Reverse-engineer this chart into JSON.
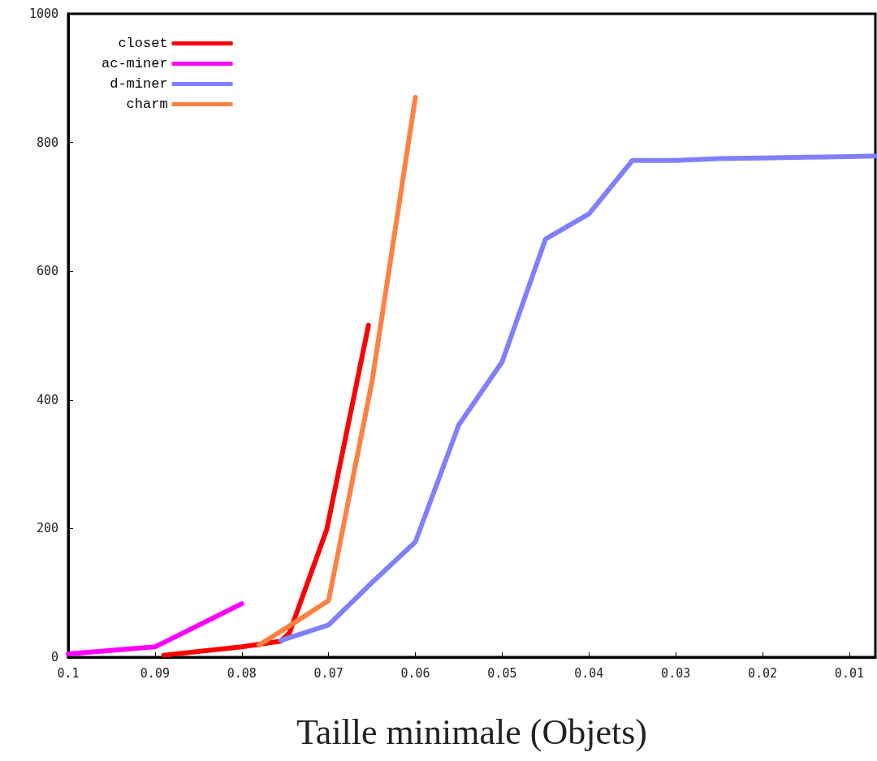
{
  "chart_data": {
    "type": "line",
    "xlabel": "Taille minimale (Objets)",
    "xlim": [
      0.1,
      0.007
    ],
    "xticks": [
      {
        "value": 0.1,
        "label": "0.1"
      },
      {
        "value": 0.09,
        "label": "0.09"
      },
      {
        "value": 0.08,
        "label": "0.08"
      },
      {
        "value": 0.07,
        "label": "0.07"
      },
      {
        "value": 0.06,
        "label": "0.06"
      },
      {
        "value": 0.05,
        "label": "0.05"
      },
      {
        "value": 0.04,
        "label": "0.04"
      },
      {
        "value": 0.03,
        "label": "0.03"
      },
      {
        "value": 0.02,
        "label": "0.02"
      },
      {
        "value": 0.01,
        "label": "0.01"
      }
    ],
    "ylim": [
      0,
      1000
    ],
    "yticks": [
      0,
      200,
      400,
      600,
      800,
      1000
    ],
    "grid": false,
    "legend": "top left",
    "marker": "none",
    "line_style": "solid",
    "series": [
      {
        "name": "closet",
        "color": "#ff0000",
        "x": [
          0.089,
          0.08,
          0.0755,
          0.0745,
          0.0702,
          0.0654
        ],
        "values": [
          3,
          16,
          25,
          38,
          199,
          516
        ]
      },
      {
        "name": "ac-miner",
        "color": "#ff00ff",
        "x": [
          0.1,
          0.09,
          0.08
        ],
        "values": [
          5,
          16,
          83
        ]
      },
      {
        "name": "d-miner",
        "color": "#8080ff",
        "x": [
          0.0755,
          0.07,
          0.065,
          0.06,
          0.055,
          0.05,
          0.045,
          0.04,
          0.035,
          0.03,
          0.025,
          0.02,
          0.015,
          0.01,
          0.007
        ],
        "values": [
          26,
          50,
          116,
          179,
          361,
          459,
          650,
          689,
          772,
          772,
          775,
          776,
          777,
          778,
          779
        ]
      },
      {
        "name": "charm",
        "color": "#ff8040",
        "x": [
          0.078,
          0.074,
          0.07,
          0.065,
          0.06
        ],
        "values": [
          19,
          53,
          88,
          428,
          870
        ]
      }
    ]
  }
}
